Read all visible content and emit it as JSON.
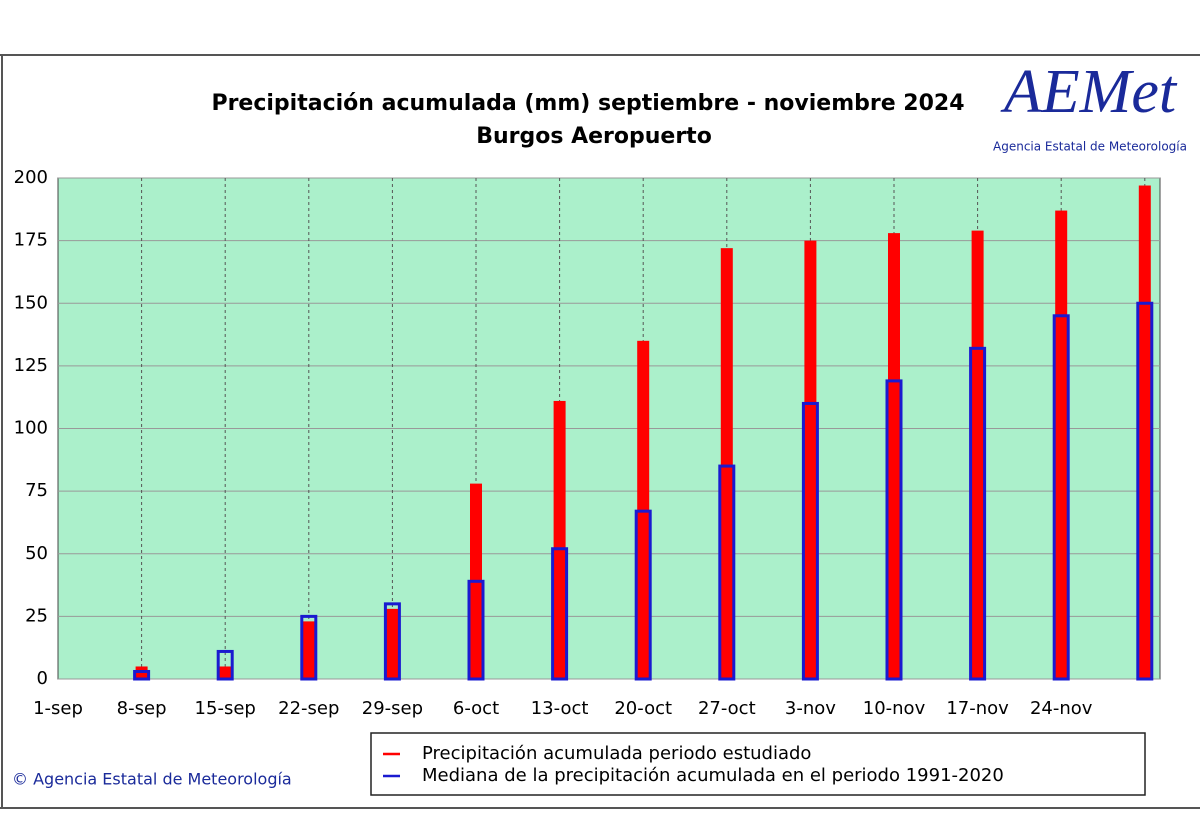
{
  "chart_data": {
    "type": "bar",
    "title": "Precipitación acumulada (mm) septiembre  - noviembre 2024",
    "subtitle": "Burgos Aeropuerto",
    "logo": "AEMet",
    "logo_caption": "Agencia Estatal de Meteorología",
    "credit": "© Agencia Estatal de Meteorología",
    "categories": [
      "1-sep",
      "8-sep",
      "15-sep",
      "22-sep",
      "29-sep",
      "6-oct",
      "13-oct",
      "20-oct",
      "27-oct",
      "3-nov",
      "10-nov",
      "17-nov",
      "24-nov",
      null
    ],
    "series": [
      {
        "name": "Precipitación acumulada periodo estudiado",
        "color": "#ff0000",
        "values": [
          0,
          5,
          5,
          23,
          28,
          78,
          111,
          135,
          172,
          175,
          178,
          179,
          187,
          197
        ]
      },
      {
        "name": "Mediana de la precipitación acumulada en el periodo 1991-2020",
        "color": "#1a1ad0",
        "values": [
          0,
          3,
          11,
          25,
          30,
          39,
          52,
          67,
          85,
          110,
          119,
          132,
          145,
          150
        ]
      }
    ],
    "ylim": [
      0,
      200
    ],
    "yticks": [
      0,
      25,
      50,
      75,
      100,
      125,
      150,
      175,
      200
    ],
    "grid": true
  }
}
